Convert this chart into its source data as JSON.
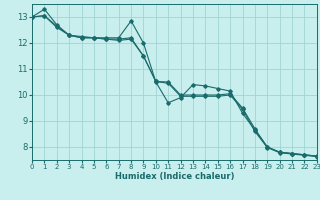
{
  "xlabel": "Humidex (Indice chaleur)",
  "xlim": [
    0,
    23
  ],
  "ylim": [
    7.5,
    13.5
  ],
  "yticks": [
    8,
    9,
    10,
    11,
    12,
    13
  ],
  "xticks": [
    0,
    1,
    2,
    3,
    4,
    5,
    6,
    7,
    8,
    9,
    10,
    11,
    12,
    13,
    14,
    15,
    16,
    17,
    18,
    19,
    20,
    21,
    22,
    23
  ],
  "bg_color": "#c8eeee",
  "grid_color": "#a0d4d4",
  "line_color": "#1a6b6b",
  "series": [
    [
      13.0,
      13.3,
      12.7,
      12.3,
      12.25,
      12.2,
      12.2,
      12.2,
      12.85,
      12.0,
      10.5,
      9.7,
      9.9,
      10.4,
      10.35,
      10.25,
      10.15,
      9.3,
      8.65,
      8.0,
      7.8,
      7.75,
      7.7,
      7.65
    ],
    [
      13.0,
      13.05,
      12.65,
      12.3,
      12.2,
      12.2,
      12.15,
      12.15,
      12.2,
      11.5,
      10.52,
      10.5,
      10.0,
      10.0,
      10.0,
      10.0,
      10.05,
      9.5,
      8.7,
      8.0,
      7.8,
      7.75,
      7.7,
      7.65
    ],
    [
      13.0,
      13.05,
      12.6,
      12.3,
      12.2,
      12.2,
      12.15,
      12.1,
      12.15,
      11.5,
      10.52,
      10.45,
      9.95,
      9.95,
      9.95,
      9.95,
      10.0,
      9.45,
      8.6,
      7.98,
      7.78,
      7.73,
      7.68,
      7.63
    ]
  ]
}
